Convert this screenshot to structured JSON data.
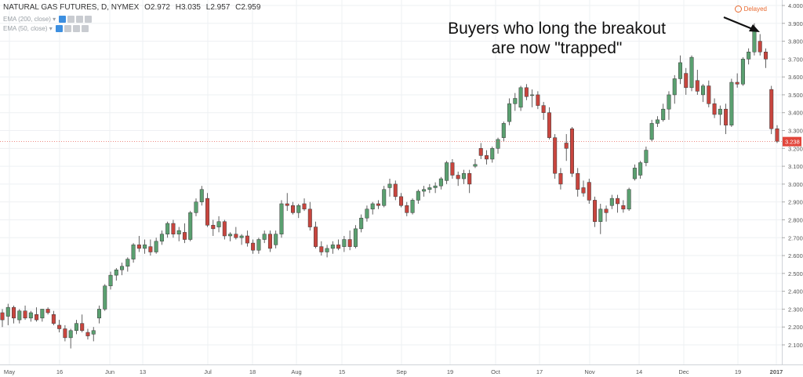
{
  "header": {
    "symbol": "NATURAL GAS FUTURES, D, NYMEX",
    "open": "O2.972",
    "high": "H3.035",
    "low": "L2.957",
    "close": "C2.959",
    "ema1": "EMA (200, close)",
    "ema2": "EMA (50, close)",
    "delayed": "Delayed"
  },
  "annotation": {
    "line1": "Buyers who long the breakout",
    "line2": "are now \"trapped\""
  },
  "colors": {
    "up": "#5aa070",
    "down": "#c8453e",
    "grid": "#eef0f3",
    "axis": "#555555",
    "price_tag": "#e2463b"
  },
  "chart_data": {
    "type": "candlestick",
    "ylim": [
      2.05,
      4.0
    ],
    "y_ticks": [
      "4.000",
      "3.900",
      "3.800",
      "3.700",
      "3.600",
      "3.500",
      "3.400",
      "3.300",
      "3.200",
      "3.100",
      "3.000",
      "2.900",
      "2.800",
      "2.700",
      "2.600",
      "2.500",
      "2.400",
      "2.300",
      "2.200",
      "2.100"
    ],
    "x_ticks": [
      "May",
      "16",
      "Jun",
      "13",
      "Jul",
      "18",
      "Aug",
      "15",
      "Sep",
      "19",
      "Oct",
      "17",
      "Nov",
      "14",
      "Dec",
      "19",
      "2017"
    ],
    "last_price": "3.238",
    "candles": [
      {
        "o": 2.28,
        "h": 2.3,
        "l": 2.2,
        "c": 2.24
      },
      {
        "o": 2.26,
        "h": 2.33,
        "l": 2.21,
        "c": 2.31
      },
      {
        "o": 2.31,
        "h": 2.32,
        "l": 2.22,
        "c": 2.25
      },
      {
        "o": 2.24,
        "h": 2.3,
        "l": 2.22,
        "c": 2.29
      },
      {
        "o": 2.29,
        "h": 2.32,
        "l": 2.24,
        "c": 2.25
      },
      {
        "o": 2.25,
        "h": 2.29,
        "l": 2.23,
        "c": 2.28
      },
      {
        "o": 2.27,
        "h": 2.31,
        "l": 2.23,
        "c": 2.24
      },
      {
        "o": 2.25,
        "h": 2.3,
        "l": 2.23,
        "c": 2.3
      },
      {
        "o": 2.3,
        "h": 2.31,
        "l": 2.27,
        "c": 2.28
      },
      {
        "o": 2.27,
        "h": 2.29,
        "l": 2.21,
        "c": 2.22
      },
      {
        "o": 2.21,
        "h": 2.24,
        "l": 2.17,
        "c": 2.19
      },
      {
        "o": 2.19,
        "h": 2.21,
        "l": 2.12,
        "c": 2.14
      },
      {
        "o": 2.14,
        "h": 2.19,
        "l": 2.08,
        "c": 2.18
      },
      {
        "o": 2.18,
        "h": 2.24,
        "l": 2.16,
        "c": 2.22
      },
      {
        "o": 2.22,
        "h": 2.27,
        "l": 2.17,
        "c": 2.18
      },
      {
        "o": 2.17,
        "h": 2.19,
        "l": 2.13,
        "c": 2.15
      },
      {
        "o": 2.16,
        "h": 2.2,
        "l": 2.12,
        "c": 2.18
      },
      {
        "o": 2.25,
        "h": 2.32,
        "l": 2.22,
        "c": 2.3
      },
      {
        "o": 2.3,
        "h": 2.44,
        "l": 2.29,
        "c": 2.43
      },
      {
        "o": 2.43,
        "h": 2.51,
        "l": 2.41,
        "c": 2.49
      },
      {
        "o": 2.49,
        "h": 2.53,
        "l": 2.46,
        "c": 2.52
      },
      {
        "o": 2.52,
        "h": 2.56,
        "l": 2.49,
        "c": 2.54
      },
      {
        "o": 2.54,
        "h": 2.59,
        "l": 2.51,
        "c": 2.58
      },
      {
        "o": 2.58,
        "h": 2.67,
        "l": 2.56,
        "c": 2.66
      },
      {
        "o": 2.66,
        "h": 2.71,
        "l": 2.62,
        "c": 2.64
      },
      {
        "o": 2.64,
        "h": 2.69,
        "l": 2.61,
        "c": 2.66
      },
      {
        "o": 2.65,
        "h": 2.69,
        "l": 2.6,
        "c": 2.62
      },
      {
        "o": 2.62,
        "h": 2.7,
        "l": 2.61,
        "c": 2.68
      },
      {
        "o": 2.68,
        "h": 2.74,
        "l": 2.66,
        "c": 2.72
      },
      {
        "o": 2.72,
        "h": 2.79,
        "l": 2.7,
        "c": 2.78
      },
      {
        "o": 2.78,
        "h": 2.8,
        "l": 2.7,
        "c": 2.72
      },
      {
        "o": 2.72,
        "h": 2.76,
        "l": 2.68,
        "c": 2.74
      },
      {
        "o": 2.73,
        "h": 2.78,
        "l": 2.67,
        "c": 2.69
      },
      {
        "o": 2.69,
        "h": 2.85,
        "l": 2.68,
        "c": 2.84
      },
      {
        "o": 2.84,
        "h": 2.92,
        "l": 2.82,
        "c": 2.9
      },
      {
        "o": 2.9,
        "h": 2.99,
        "l": 2.88,
        "c": 2.97
      },
      {
        "o": 2.92,
        "h": 2.95,
        "l": 2.76,
        "c": 2.77
      },
      {
        "o": 2.77,
        "h": 2.8,
        "l": 2.71,
        "c": 2.75
      },
      {
        "o": 2.76,
        "h": 2.82,
        "l": 2.73,
        "c": 2.79
      },
      {
        "o": 2.79,
        "h": 2.8,
        "l": 2.69,
        "c": 2.71
      },
      {
        "o": 2.71,
        "h": 2.73,
        "l": 2.68,
        "c": 2.72
      },
      {
        "o": 2.72,
        "h": 2.76,
        "l": 2.69,
        "c": 2.7
      },
      {
        "o": 2.7,
        "h": 2.72,
        "l": 2.66,
        "c": 2.71
      },
      {
        "o": 2.71,
        "h": 2.74,
        "l": 2.65,
        "c": 2.67
      },
      {
        "o": 2.67,
        "h": 2.69,
        "l": 2.61,
        "c": 2.63
      },
      {
        "o": 2.63,
        "h": 2.7,
        "l": 2.61,
        "c": 2.69
      },
      {
        "o": 2.69,
        "h": 2.74,
        "l": 2.67,
        "c": 2.72
      },
      {
        "o": 2.72,
        "h": 2.74,
        "l": 2.62,
        "c": 2.64
      },
      {
        "o": 2.66,
        "h": 2.74,
        "l": 2.64,
        "c": 2.72
      },
      {
        "o": 2.72,
        "h": 2.91,
        "l": 2.7,
        "c": 2.89
      },
      {
        "o": 2.89,
        "h": 2.95,
        "l": 2.85,
        "c": 2.88
      },
      {
        "o": 2.88,
        "h": 2.9,
        "l": 2.83,
        "c": 2.84
      },
      {
        "o": 2.84,
        "h": 2.89,
        "l": 2.81,
        "c": 2.88
      },
      {
        "o": 2.89,
        "h": 2.92,
        "l": 2.85,
        "c": 2.86
      },
      {
        "o": 2.86,
        "h": 2.9,
        "l": 2.74,
        "c": 2.76
      },
      {
        "o": 2.76,
        "h": 2.79,
        "l": 2.64,
        "c": 2.65
      },
      {
        "o": 2.65,
        "h": 2.68,
        "l": 2.6,
        "c": 2.62
      },
      {
        "o": 2.62,
        "h": 2.66,
        "l": 2.59,
        "c": 2.64
      },
      {
        "o": 2.64,
        "h": 2.68,
        "l": 2.61,
        "c": 2.66
      },
      {
        "o": 2.66,
        "h": 2.69,
        "l": 2.63,
        "c": 2.64
      },
      {
        "o": 2.65,
        "h": 2.71,
        "l": 2.62,
        "c": 2.69
      },
      {
        "o": 2.69,
        "h": 2.74,
        "l": 2.63,
        "c": 2.65
      },
      {
        "o": 2.65,
        "h": 2.77,
        "l": 2.64,
        "c": 2.75
      },
      {
        "o": 2.75,
        "h": 2.83,
        "l": 2.73,
        "c": 2.81
      },
      {
        "o": 2.81,
        "h": 2.88,
        "l": 2.79,
        "c": 2.86
      },
      {
        "o": 2.86,
        "h": 2.9,
        "l": 2.83,
        "c": 2.89
      },
      {
        "o": 2.89,
        "h": 2.91,
        "l": 2.86,
        "c": 2.88
      },
      {
        "o": 2.88,
        "h": 2.99,
        "l": 2.87,
        "c": 2.97
      },
      {
        "o": 2.98,
        "h": 3.03,
        "l": 2.93,
        "c": 3.0
      },
      {
        "o": 3.0,
        "h": 3.02,
        "l": 2.91,
        "c": 2.93
      },
      {
        "o": 2.93,
        "h": 2.95,
        "l": 2.87,
        "c": 2.88
      },
      {
        "o": 2.88,
        "h": 2.9,
        "l": 2.82,
        "c": 2.84
      },
      {
        "o": 2.84,
        "h": 2.92,
        "l": 2.83,
        "c": 2.91
      },
      {
        "o": 2.91,
        "h": 2.97,
        "l": 2.89,
        "c": 2.96
      },
      {
        "o": 2.96,
        "h": 2.99,
        "l": 2.93,
        "c": 2.97
      },
      {
        "o": 2.97,
        "h": 3.0,
        "l": 2.95,
        "c": 2.98
      },
      {
        "o": 2.98,
        "h": 3.01,
        "l": 2.95,
        "c": 2.99
      },
      {
        "o": 2.99,
        "h": 3.04,
        "l": 2.97,
        "c": 3.03
      },
      {
        "o": 3.02,
        "h": 3.13,
        "l": 3.0,
        "c": 3.12
      },
      {
        "o": 3.12,
        "h": 3.14,
        "l": 3.03,
        "c": 3.05
      },
      {
        "o": 3.05,
        "h": 3.07,
        "l": 2.99,
        "c": 3.03
      },
      {
        "o": 3.03,
        "h": 3.08,
        "l": 3.0,
        "c": 3.06
      },
      {
        "o": 3.06,
        "h": 3.08,
        "l": 2.95,
        "c": 3.0
      },
      {
        "o": 3.1,
        "h": 3.14,
        "l": 3.09,
        "c": 3.11
      },
      {
        "o": 3.2,
        "h": 3.23,
        "l": 3.14,
        "c": 3.16
      },
      {
        "o": 3.16,
        "h": 3.19,
        "l": 3.11,
        "c": 3.14
      },
      {
        "o": 3.14,
        "h": 3.21,
        "l": 3.12,
        "c": 3.2
      },
      {
        "o": 3.2,
        "h": 3.26,
        "l": 3.17,
        "c": 3.25
      },
      {
        "o": 3.26,
        "h": 3.35,
        "l": 3.24,
        "c": 3.34
      },
      {
        "o": 3.35,
        "h": 3.48,
        "l": 3.33,
        "c": 3.45
      },
      {
        "o": 3.45,
        "h": 3.51,
        "l": 3.41,
        "c": 3.48
      },
      {
        "o": 3.43,
        "h": 3.55,
        "l": 3.41,
        "c": 3.54
      },
      {
        "o": 3.54,
        "h": 3.56,
        "l": 3.47,
        "c": 3.49
      },
      {
        "o": 3.5,
        "h": 3.53,
        "l": 3.43,
        "c": 3.5
      },
      {
        "o": 3.5,
        "h": 3.52,
        "l": 3.42,
        "c": 3.44
      },
      {
        "o": 3.44,
        "h": 3.46,
        "l": 3.36,
        "c": 3.4
      },
      {
        "o": 3.4,
        "h": 3.43,
        "l": 3.25,
        "c": 3.26
      },
      {
        "o": 3.26,
        "h": 3.28,
        "l": 3.03,
        "c": 3.06
      },
      {
        "o": 3.06,
        "h": 3.09,
        "l": 2.97,
        "c": 3.0
      },
      {
        "o": 3.23,
        "h": 3.28,
        "l": 3.13,
        "c": 3.2
      },
      {
        "o": 3.31,
        "h": 3.32,
        "l": 3.04,
        "c": 3.06
      },
      {
        "o": 3.06,
        "h": 3.09,
        "l": 2.93,
        "c": 2.97
      },
      {
        "o": 2.98,
        "h": 3.02,
        "l": 2.93,
        "c": 2.95
      },
      {
        "o": 3.01,
        "h": 3.03,
        "l": 2.89,
        "c": 2.91
      },
      {
        "o": 2.91,
        "h": 2.93,
        "l": 2.76,
        "c": 2.79
      },
      {
        "o": 2.79,
        "h": 2.89,
        "l": 2.72,
        "c": 2.86
      },
      {
        "o": 2.86,
        "h": 2.88,
        "l": 2.79,
        "c": 2.84
      },
      {
        "o": 2.88,
        "h": 2.94,
        "l": 2.86,
        "c": 2.92
      },
      {
        "o": 2.92,
        "h": 2.94,
        "l": 2.84,
        "c": 2.89
      },
      {
        "o": 2.88,
        "h": 2.91,
        "l": 2.84,
        "c": 2.86
      },
      {
        "o": 2.86,
        "h": 2.98,
        "l": 2.85,
        "c": 2.97
      },
      {
        "o": 3.03,
        "h": 3.11,
        "l": 3.02,
        "c": 3.09
      },
      {
        "o": 3.05,
        "h": 3.13,
        "l": 3.03,
        "c": 3.12
      },
      {
        "o": 3.12,
        "h": 3.21,
        "l": 3.1,
        "c": 3.19
      },
      {
        "o": 3.25,
        "h": 3.36,
        "l": 3.24,
        "c": 3.34
      },
      {
        "o": 3.34,
        "h": 3.38,
        "l": 3.32,
        "c": 3.36
      },
      {
        "o": 3.36,
        "h": 3.45,
        "l": 3.35,
        "c": 3.42
      },
      {
        "o": 3.42,
        "h": 3.52,
        "l": 3.36,
        "c": 3.5
      },
      {
        "o": 3.5,
        "h": 3.61,
        "l": 3.45,
        "c": 3.59
      },
      {
        "o": 3.59,
        "h": 3.72,
        "l": 3.56,
        "c": 3.68
      },
      {
        "o": 3.62,
        "h": 3.65,
        "l": 3.5,
        "c": 3.54
      },
      {
        "o": 3.54,
        "h": 3.72,
        "l": 3.52,
        "c": 3.71
      },
      {
        "o": 3.58,
        "h": 3.64,
        "l": 3.5,
        "c": 3.52
      },
      {
        "o": 3.5,
        "h": 3.56,
        "l": 3.46,
        "c": 3.55
      },
      {
        "o": 3.55,
        "h": 3.58,
        "l": 3.43,
        "c": 3.45
      },
      {
        "o": 3.45,
        "h": 3.48,
        "l": 3.37,
        "c": 3.39
      },
      {
        "o": 3.39,
        "h": 3.44,
        "l": 3.33,
        "c": 3.42
      },
      {
        "o": 3.42,
        "h": 3.45,
        "l": 3.28,
        "c": 3.33
      },
      {
        "o": 3.33,
        "h": 3.59,
        "l": 3.32,
        "c": 3.57
      },
      {
        "o": 3.57,
        "h": 3.62,
        "l": 3.54,
        "c": 3.56
      },
      {
        "o": 3.56,
        "h": 3.71,
        "l": 3.55,
        "c": 3.7
      },
      {
        "o": 3.7,
        "h": 3.76,
        "l": 3.67,
        "c": 3.74
      },
      {
        "o": 3.74,
        "h": 3.9,
        "l": 3.72,
        "c": 3.87
      },
      {
        "o": 3.8,
        "h": 3.84,
        "l": 3.72,
        "c": 3.74
      },
      {
        "o": 3.74,
        "h": 3.76,
        "l": 3.65,
        "c": 3.7
      },
      {
        "o": 3.53,
        "h": 3.55,
        "l": 3.28,
        "c": 3.31
      },
      {
        "o": 3.31,
        "h": 3.33,
        "l": 3.23,
        "c": 3.24
      }
    ]
  }
}
